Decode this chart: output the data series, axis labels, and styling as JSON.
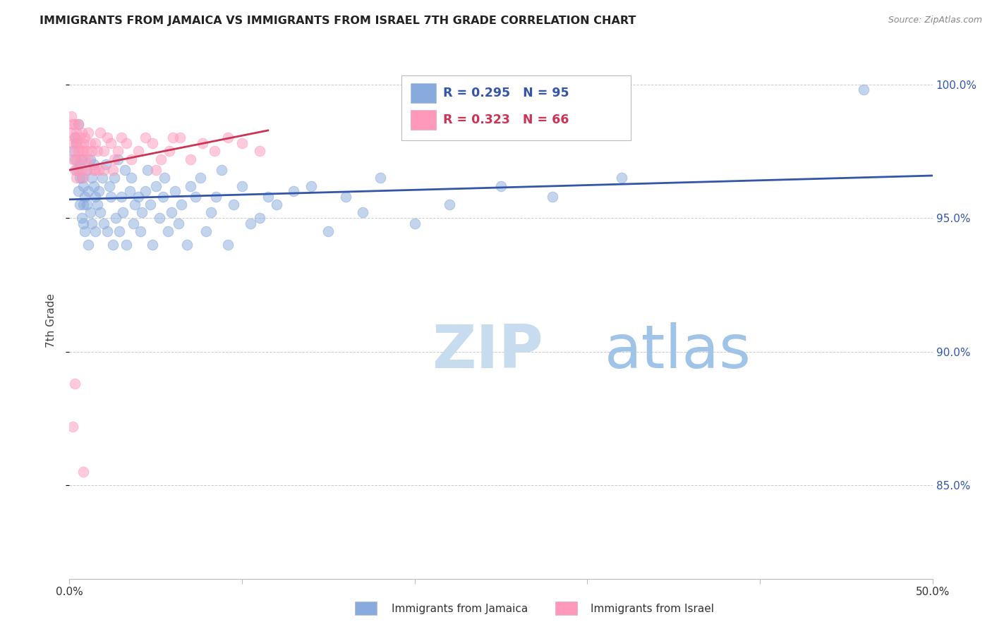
{
  "title": "IMMIGRANTS FROM JAMAICA VS IMMIGRANTS FROM ISRAEL 7TH GRADE CORRELATION CHART",
  "source": "Source: ZipAtlas.com",
  "xlabel_bottom": "Immigrants from Jamaica",
  "xlabel_bottom2": "Immigrants from Israel",
  "ylabel": "7th Grade",
  "xlim": [
    0.0,
    0.5
  ],
  "ylim": [
    0.815,
    1.008
  ],
  "yticks": [
    0.85,
    0.9,
    0.95,
    1.0
  ],
  "ytick_labels": [
    "85.0%",
    "90.0%",
    "95.0%",
    "100.0%"
  ],
  "xticks": [
    0.0,
    0.1,
    0.2,
    0.3,
    0.4,
    0.5
  ],
  "xtick_labels": [
    "0.0%",
    "",
    "",
    "",
    "",
    "50.0%"
  ],
  "legend_r1": "R = 0.295",
  "legend_n1": "N = 95",
  "legend_r2": "R = 0.323",
  "legend_n2": "N = 66",
  "color_blue": "#88AADD",
  "color_pink": "#FF99BB",
  "color_line_blue": "#3355AA",
  "color_line_pink": "#CC3355",
  "color_grid": "#CCCCCC",
  "color_right_axis": "#3355AA",
  "watermark_zip": "ZIP",
  "watermark_atlas": "atlas",
  "watermark_color_zip": "#C8DCF0",
  "watermark_color_atlas": "#A0C4E8",
  "jamaica_x": [
    0.002,
    0.003,
    0.003,
    0.004,
    0.004,
    0.005,
    0.005,
    0.006,
    0.006,
    0.006,
    0.007,
    0.007,
    0.007,
    0.008,
    0.008,
    0.008,
    0.009,
    0.009,
    0.01,
    0.01,
    0.011,
    0.011,
    0.012,
    0.012,
    0.013,
    0.013,
    0.014,
    0.014,
    0.015,
    0.015,
    0.016,
    0.017,
    0.018,
    0.019,
    0.02,
    0.021,
    0.022,
    0.023,
    0.024,
    0.025,
    0.026,
    0.027,
    0.028,
    0.029,
    0.03,
    0.031,
    0.032,
    0.033,
    0.035,
    0.036,
    0.037,
    0.038,
    0.04,
    0.041,
    0.042,
    0.044,
    0.045,
    0.047,
    0.048,
    0.05,
    0.052,
    0.054,
    0.055,
    0.057,
    0.059,
    0.061,
    0.063,
    0.065,
    0.068,
    0.07,
    0.073,
    0.076,
    0.079,
    0.082,
    0.085,
    0.088,
    0.092,
    0.095,
    0.1,
    0.105,
    0.11,
    0.115,
    0.12,
    0.13,
    0.14,
    0.15,
    0.16,
    0.17,
    0.18,
    0.2,
    0.22,
    0.25,
    0.28,
    0.32,
    0.46
  ],
  "jamaica_y": [
    0.975,
    0.98,
    0.972,
    0.968,
    0.978,
    0.985,
    0.96,
    0.965,
    0.97,
    0.955,
    0.95,
    0.972,
    0.965,
    0.962,
    0.955,
    0.948,
    0.958,
    0.945,
    0.968,
    0.955,
    0.96,
    0.94,
    0.972,
    0.952,
    0.965,
    0.948,
    0.962,
    0.97,
    0.945,
    0.958,
    0.955,
    0.96,
    0.952,
    0.965,
    0.948,
    0.97,
    0.945,
    0.962,
    0.958,
    0.94,
    0.965,
    0.95,
    0.972,
    0.945,
    0.958,
    0.952,
    0.968,
    0.94,
    0.96,
    0.965,
    0.948,
    0.955,
    0.958,
    0.945,
    0.952,
    0.96,
    0.968,
    0.955,
    0.94,
    0.962,
    0.95,
    0.958,
    0.965,
    0.945,
    0.952,
    0.96,
    0.948,
    0.955,
    0.94,
    0.962,
    0.958,
    0.965,
    0.945,
    0.952,
    0.958,
    0.968,
    0.94,
    0.955,
    0.962,
    0.948,
    0.95,
    0.958,
    0.955,
    0.96,
    0.962,
    0.945,
    0.958,
    0.952,
    0.965,
    0.948,
    0.955,
    0.962,
    0.958,
    0.965,
    0.998
  ],
  "israel_x": [
    0.001,
    0.001,
    0.002,
    0.002,
    0.002,
    0.003,
    0.003,
    0.003,
    0.003,
    0.004,
    0.004,
    0.004,
    0.004,
    0.005,
    0.005,
    0.005,
    0.006,
    0.006,
    0.006,
    0.007,
    0.007,
    0.007,
    0.008,
    0.008,
    0.008,
    0.009,
    0.009,
    0.01,
    0.01,
    0.011,
    0.011,
    0.012,
    0.013,
    0.014,
    0.015,
    0.016,
    0.017,
    0.018,
    0.02,
    0.022,
    0.024,
    0.026,
    0.028,
    0.03,
    0.033,
    0.036,
    0.04,
    0.044,
    0.048,
    0.053,
    0.058,
    0.064,
    0.07,
    0.077,
    0.084,
    0.092,
    0.1,
    0.11,
    0.05,
    0.06,
    0.002,
    0.008,
    0.015,
    0.003,
    0.02,
    0.025
  ],
  "israel_y": [
    0.988,
    0.982,
    0.985,
    0.978,
    0.972,
    0.985,
    0.975,
    0.968,
    0.98,
    0.978,
    0.972,
    0.965,
    0.982,
    0.975,
    0.968,
    0.985,
    0.978,
    0.972,
    0.98,
    0.975,
    0.968,
    0.982,
    0.975,
    0.965,
    0.978,
    0.972,
    0.98,
    0.975,
    0.968,
    0.982,
    0.972,
    0.978,
    0.975,
    0.968,
    0.978,
    0.975,
    0.968,
    0.982,
    0.975,
    0.98,
    0.978,
    0.972,
    0.975,
    0.98,
    0.978,
    0.972,
    0.975,
    0.98,
    0.978,
    0.972,
    0.975,
    0.98,
    0.972,
    0.978,
    0.975,
    0.98,
    0.978,
    0.975,
    0.968,
    0.98,
    0.872,
    0.855,
    0.968,
    0.888,
    0.968,
    0.968
  ]
}
